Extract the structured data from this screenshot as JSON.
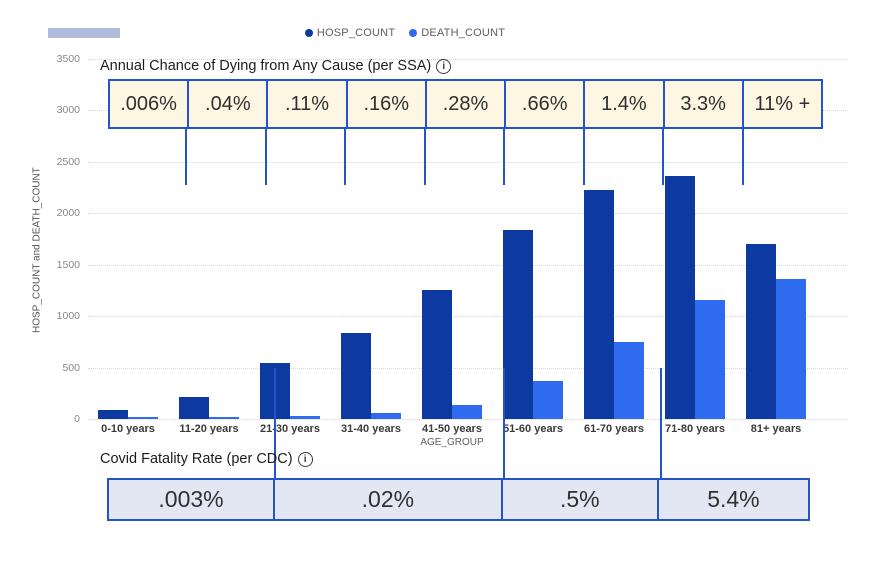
{
  "legend": {
    "items": [
      {
        "label": "HOSP_COUNT",
        "color": "#0d3aa0"
      },
      {
        "label": "DEATH_COUNT",
        "color": "#2e6bee"
      }
    ]
  },
  "chart_data": {
    "type": "bar",
    "categories": [
      "0-10 years",
      "11-20 years",
      "21-30 years",
      "31-40 years",
      "41-50 years",
      "51-60 years",
      "61-70 years",
      "71-80 years",
      "81+ years"
    ],
    "series": [
      {
        "name": "HOSP_COUNT",
        "color": "#0d3aa0",
        "values": [
          90,
          210,
          540,
          840,
          1250,
          1840,
          2230,
          2360,
          1700
        ]
      },
      {
        "name": "DEATH_COUNT",
        "color": "#2e6bee",
        "values": [
          15,
          20,
          30,
          60,
          140,
          370,
          750,
          1160,
          1360
        ]
      }
    ],
    "xlabel": "AGE_GROUP",
    "ylabel": "HOSP_COUNT and DEATH_COUNT",
    "ylim": [
      0,
      3500
    ],
    "ytick_step": 500,
    "grid": "horizontal-dotted",
    "legend_position": "top-center"
  },
  "ssa_annotation": {
    "title": "Annual Chance of Dying from Any Cause (per SSA)",
    "info_icon_char": "i",
    "values": [
      ".006%",
      ".04%",
      ".11%",
      ".16%",
      ".28%",
      ".66%",
      "1.4%",
      "3.3%",
      "11% +"
    ]
  },
  "cdc_annotation": {
    "title": "Covid Fatality Rate (per CDC)",
    "info_icon_char": "i",
    "cells": [
      {
        "label": ".003%",
        "age_span": 2
      },
      {
        "label": ".02%",
        "age_span": 3
      },
      {
        "label": ".5%",
        "age_span": 2
      },
      {
        "label": "5.4%",
        "age_span": 2
      }
    ]
  },
  "colors": {
    "hosp_bar": "#0d3aa0",
    "death_bar": "#2e6bee",
    "annotation_border": "#2355c8",
    "ssa_fill": "#fdf6e2",
    "cdc_fill": "#e3e7f4",
    "gridline": "#d8d8d8"
  }
}
